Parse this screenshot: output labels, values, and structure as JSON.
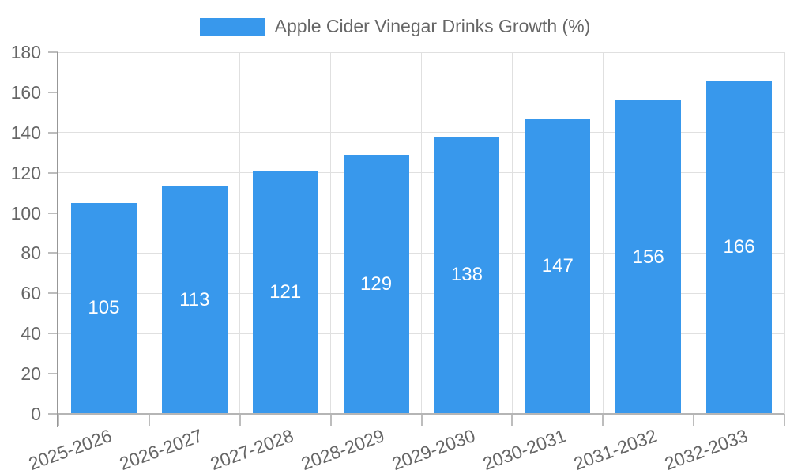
{
  "chart_data": {
    "type": "bar",
    "title": "Apple Cider Vinegar Drinks Growth (%)",
    "legend": {
      "position": "top",
      "label": "Apple Cider Vinegar Drinks Growth (%)"
    },
    "categories": [
      "2025-2026",
      "2026-2027",
      "2027-2028",
      "2028-2029",
      "2029-2030",
      "2030-2031",
      "2031-2032",
      "2032-2033"
    ],
    "values": [
      105,
      113,
      121,
      129,
      138,
      147,
      156,
      166
    ],
    "xlabel": "",
    "ylabel": "",
    "ylim": [
      0,
      180
    ],
    "ytick_step": 20,
    "ytick_labels": [
      "0",
      "20",
      "40",
      "60",
      "80",
      "100",
      "120",
      "140",
      "160",
      "180"
    ],
    "grid": true,
    "x_label_rotation_deg": -20,
    "colors": {
      "bar": "#3898ec",
      "bar_label": "#ffffff",
      "axis_text": "#666666",
      "grid": "#e0e0e0",
      "y_axis_line": "#979797",
      "x_axis_line": "#b5b5b5",
      "tick": "#bdbdbd",
      "background": "#ffffff"
    }
  }
}
